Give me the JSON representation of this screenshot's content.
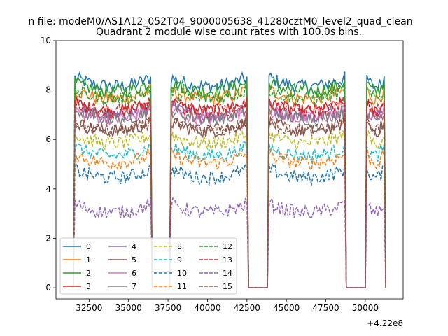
{
  "figure": {
    "suptitle": "n file: modeM0/AS1A12_052T04_9000005638_41280cztM0_level2_quad_clean",
    "title": "Quadrant 2 module wise count rates with 100.0s bins."
  },
  "chart_data": {
    "type": "line",
    "title": "Quadrant 2 module wise count rates with 100.0s bins.",
    "xlabel": "",
    "ylabel": "",
    "x_offset_label": "+4.22e8",
    "xlim": [
      30400,
      52400
    ],
    "ylim": [
      -0.45,
      10.0
    ],
    "x_ticks": [
      32500,
      35000,
      37500,
      40000,
      42500,
      45000,
      47500,
      50000
    ],
    "x_tick_labels": [
      "32500",
      "35000",
      "37500",
      "40000",
      "42500",
      "45000",
      "47500",
      "50000"
    ],
    "y_ticks": [
      0,
      2,
      4,
      6,
      8,
      10
    ],
    "y_tick_labels": [
      "0",
      "2",
      "4",
      "6",
      "8",
      "10"
    ],
    "grid": false,
    "legend_position": "lower-left",
    "legend_columns": 4,
    "active_segments": [
      {
        "start": 31600,
        "end": 36450
      },
      {
        "start": 37700,
        "end": 42500
      },
      {
        "start": 43900,
        "end": 48750
      },
      {
        "start": 50100,
        "end": 51200
      }
    ],
    "gap_level": 0,
    "series": [
      {
        "name": "0",
        "color": "#1f77b4",
        "style": "solid",
        "level": 8.3
      },
      {
        "name": "1",
        "color": "#ff7f0e",
        "style": "solid",
        "level": 7.8
      },
      {
        "name": "2",
        "color": "#2ca02c",
        "style": "solid",
        "level": 8.1
      },
      {
        "name": "3",
        "color": "#d62728",
        "style": "solid",
        "level": 7.3
      },
      {
        "name": "4",
        "color": "#9467bd",
        "style": "solid",
        "level": 7.1
      },
      {
        "name": "5",
        "color": "#8c564b",
        "style": "solid",
        "level": 6.5
      },
      {
        "name": "6",
        "color": "#e377c2",
        "style": "solid",
        "level": 7.0
      },
      {
        "name": "7",
        "color": "#7f7f7f",
        "style": "solid",
        "level": 7.0
      },
      {
        "name": "8",
        "color": "#bcbd22",
        "style": "dashed",
        "level": 6.0
      },
      {
        "name": "9",
        "color": "#17becf",
        "style": "dashed",
        "level": 5.5
      },
      {
        "name": "10",
        "color": "#1f77b4",
        "style": "dashed",
        "level": 4.6
      },
      {
        "name": "11",
        "color": "#ff7f0e",
        "style": "dashed",
        "level": 5.2
      },
      {
        "name": "12",
        "color": "#2ca02c",
        "style": "dashed",
        "level": 7.8
      },
      {
        "name": "13",
        "color": "#d62728",
        "style": "dashed",
        "level": 7.3
      },
      {
        "name": "14",
        "color": "#9467bd",
        "style": "dashed",
        "level": 3.2
      },
      {
        "name": "15",
        "color": "#8c564b",
        "style": "dashed",
        "level": 6.5
      }
    ]
  }
}
